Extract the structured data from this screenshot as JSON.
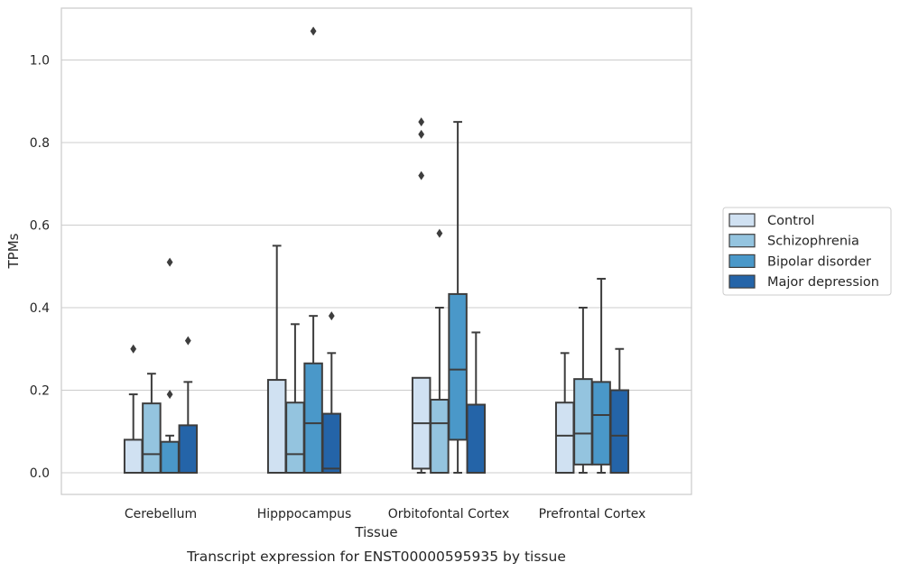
{
  "chart_data": {
    "type": "box",
    "xlabel": "Tissue",
    "ylabel": "TPMs",
    "caption": "Transcript expression for ENST00000595935 by tissue",
    "ylim": [
      -0.05,
      1.13
    ],
    "yticks": [
      0.0,
      0.2,
      0.4,
      0.6,
      0.8,
      1.0
    ],
    "ytick_labels": [
      "0.0",
      "0.2",
      "0.4",
      "0.6",
      "0.8",
      "1.0"
    ],
    "grid": "horizontal",
    "legend_position": "right",
    "categories": [
      "Cerebellum",
      "Hipppocampus",
      "Orbitofontal Cortex",
      "Prefrontal Cortex"
    ],
    "series": [
      {
        "name": "Control",
        "color": "#d0e1f2",
        "boxes": [
          {
            "whislo": 0.0,
            "q1": 0.0,
            "med": 0.0,
            "q3": 0.08,
            "whishi": 0.19,
            "fliers": [
              0.3
            ]
          },
          {
            "whislo": 0.0,
            "q1": 0.0,
            "med": 0.0,
            "q3": 0.225,
            "whishi": 0.55,
            "fliers": []
          },
          {
            "whislo": 0.0,
            "q1": 0.01,
            "med": 0.12,
            "q3": 0.23,
            "whishi": 0.23,
            "fliers": [
              0.85,
              0.82,
              0.72
            ]
          },
          {
            "whislo": 0.0,
            "q1": 0.0,
            "med": 0.09,
            "q3": 0.17,
            "whishi": 0.29,
            "fliers": []
          }
        ]
      },
      {
        "name": "Schizophrenia",
        "color": "#94c4df",
        "boxes": [
          {
            "whislo": 0.0,
            "q1": 0.0,
            "med": 0.045,
            "q3": 0.168,
            "whishi": 0.24,
            "fliers": []
          },
          {
            "whislo": 0.0,
            "q1": 0.0,
            "med": 0.045,
            "q3": 0.17,
            "whishi": 0.36,
            "fliers": []
          },
          {
            "whislo": 0.0,
            "q1": 0.0,
            "med": 0.12,
            "q3": 0.177,
            "whishi": 0.4,
            "fliers": [
              0.58
            ]
          },
          {
            "whislo": 0.0,
            "q1": 0.02,
            "med": 0.095,
            "q3": 0.227,
            "whishi": 0.4,
            "fliers": []
          }
        ]
      },
      {
        "name": "Bipolar disorder",
        "color": "#4a98c9",
        "boxes": [
          {
            "whislo": 0.0,
            "q1": 0.0,
            "med": 0.0,
            "q3": 0.075,
            "whishi": 0.09,
            "fliers": [
              0.51,
              0.19
            ]
          },
          {
            "whislo": 0.0,
            "q1": 0.0,
            "med": 0.12,
            "q3": 0.265,
            "whishi": 0.38,
            "fliers": [
              1.07
            ]
          },
          {
            "whislo": 0.0,
            "q1": 0.08,
            "med": 0.25,
            "q3": 0.433,
            "whishi": 0.85,
            "fliers": []
          },
          {
            "whislo": 0.0,
            "q1": 0.02,
            "med": 0.14,
            "q3": 0.22,
            "whishi": 0.47,
            "fliers": []
          }
        ]
      },
      {
        "name": "Major depression",
        "color": "#2464a8",
        "boxes": [
          {
            "whislo": 0.0,
            "q1": 0.0,
            "med": 0.0,
            "q3": 0.115,
            "whishi": 0.22,
            "fliers": [
              0.32
            ]
          },
          {
            "whislo": 0.0,
            "q1": 0.0,
            "med": 0.01,
            "q3": 0.143,
            "whishi": 0.29,
            "fliers": [
              0.38
            ]
          },
          {
            "whislo": 0.0,
            "q1": 0.0,
            "med": 0.0,
            "q3": 0.165,
            "whishi": 0.34,
            "fliers": []
          },
          {
            "whislo": 0.0,
            "q1": 0.0,
            "med": 0.09,
            "q3": 0.2,
            "whishi": 0.3,
            "fliers": []
          }
        ]
      }
    ]
  }
}
